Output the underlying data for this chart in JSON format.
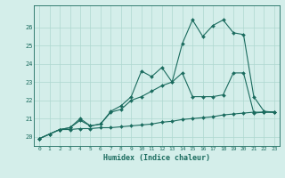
{
  "xlabel": "Humidex (Indice chaleur)",
  "ylabel": "",
  "bg_color": "#d4eeea",
  "line_color": "#1a6b5e",
  "xlim": [
    -0.5,
    23.5
  ],
  "ylim": [
    19.5,
    27.2
  ],
  "xticks": [
    0,
    1,
    2,
    3,
    4,
    5,
    6,
    7,
    8,
    9,
    10,
    11,
    12,
    13,
    14,
    15,
    16,
    17,
    18,
    19,
    20,
    21,
    22,
    23
  ],
  "yticks": [
    20,
    21,
    22,
    23,
    24,
    25,
    26
  ],
  "grid_color": "#aed8d0",
  "series1_x": [
    0,
    1,
    2,
    3,
    4,
    5,
    6,
    7,
    8,
    9,
    10,
    11,
    12,
    13,
    14,
    15,
    16,
    17,
    18,
    19,
    20,
    21,
    22,
    23
  ],
  "series1_y": [
    19.9,
    20.15,
    20.4,
    20.4,
    20.45,
    20.45,
    20.5,
    20.5,
    20.55,
    20.6,
    20.65,
    20.7,
    20.8,
    20.85,
    20.95,
    21.0,
    21.05,
    21.1,
    21.2,
    21.25,
    21.3,
    21.35,
    21.35,
    21.35
  ],
  "series2_x": [
    0,
    1,
    2,
    3,
    4,
    5,
    6,
    7,
    8,
    9,
    10,
    11,
    12,
    13,
    14,
    15,
    16,
    17,
    18,
    19,
    20,
    21,
    22,
    23
  ],
  "series2_y": [
    19.9,
    20.15,
    20.4,
    20.5,
    20.9,
    20.6,
    20.7,
    21.35,
    21.5,
    22.0,
    22.2,
    22.5,
    22.8,
    23.0,
    23.5,
    22.2,
    22.2,
    22.2,
    22.3,
    23.5,
    23.5,
    21.3,
    21.35,
    21.35
  ],
  "series3_x": [
    0,
    1,
    2,
    3,
    4,
    5,
    6,
    7,
    8,
    9,
    10,
    11,
    12,
    13,
    14,
    15,
    16,
    17,
    18,
    19,
    20,
    21,
    22,
    23
  ],
  "series3_y": [
    19.9,
    20.15,
    20.4,
    20.5,
    21.0,
    20.6,
    20.7,
    21.4,
    21.7,
    22.2,
    23.6,
    23.3,
    23.8,
    23.0,
    25.1,
    26.4,
    25.5,
    26.1,
    26.4,
    25.7,
    25.6,
    22.2,
    21.4,
    21.35
  ]
}
